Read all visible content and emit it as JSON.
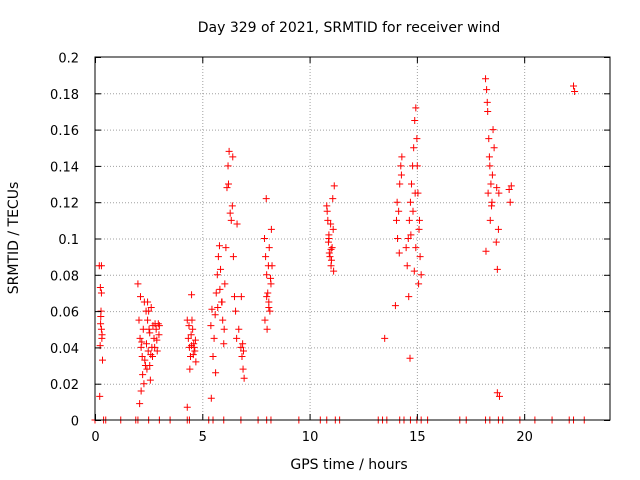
{
  "chart_data": {
    "type": "scatter",
    "title": "Day 329 of 2021, SRMTID for receiver wind",
    "xlabel": "GPS time / hours",
    "ylabel": "SRMTID / TECUs",
    "xlim": [
      0,
      24
    ],
    "ylim": [
      0,
      0.2
    ],
    "xticks": [
      0,
      5,
      10,
      15,
      20
    ],
    "xtick_labels": [
      "0",
      "5",
      "10",
      "15",
      "20"
    ],
    "yticks": [
      0,
      0.02,
      0.04,
      0.06,
      0.08,
      0.1,
      0.12,
      0.14,
      0.16,
      0.18,
      0.2
    ],
    "ytick_labels": [
      "0",
      "0.02",
      "0.04",
      "0.06",
      "0.08",
      "0.1",
      "0.12",
      "0.14",
      "0.16",
      "0.18",
      "0.2"
    ],
    "grid": true,
    "marker": "+",
    "color": "#ff0000",
    "series": [
      {
        "name": "SRMTID",
        "x": [
          0.2,
          0.25,
          0.28,
          0.3,
          0.32,
          0.35,
          0.22,
          0.27,
          0.3,
          0.26,
          0.24,
          0.3,
          0.33,
          2.0,
          2.05,
          2.1,
          2.15,
          2.2,
          2.25,
          2.3,
          2.35,
          2.4,
          2.45,
          2.5,
          2.55,
          2.6,
          2.65,
          2.7,
          2.75,
          2.8,
          2.85,
          2.9,
          2.95,
          3.0,
          2.12,
          2.22,
          2.32,
          2.42,
          2.52,
          2.62,
          2.18,
          2.28,
          2.38,
          2.48,
          2.58,
          2.68,
          2.78,
          2.88,
          2.08,
          2.98,
          2.15,
          2.45,
          2.55,
          4.3,
          4.35,
          4.4,
          4.45,
          4.5,
          4.55,
          4.6,
          4.65,
          4.7,
          4.38,
          4.48,
          4.58,
          4.68,
          4.42,
          4.52,
          4.62,
          4.5,
          4.3,
          5.4,
          5.45,
          5.5,
          5.55,
          5.6,
          5.65,
          5.7,
          5.75,
          5.8,
          5.85,
          5.9,
          5.95,
          6.0,
          6.05,
          6.1,
          6.15,
          6.2,
          6.25,
          6.3,
          6.35,
          6.4,
          6.45,
          6.5,
          6.55,
          6.6,
          6.7,
          6.8,
          6.85,
          6.9,
          6.95,
          5.42,
          5.62,
          5.72,
          5.82,
          5.92,
          6.02,
          6.22,
          6.42,
          6.62,
          6.82,
          6.88,
          6.92,
          7.9,
          7.95,
          8.0,
          8.05,
          8.1,
          8.15,
          8.2,
          8.25,
          7.92,
          8.02,
          8.12,
          8.22,
          7.98,
          8.08,
          8.18,
          8.0,
          8.1,
          10.8,
          10.85,
          10.9,
          10.95,
          11.0,
          11.05,
          11.1,
          11.15,
          10.82,
          10.92,
          11.02,
          11.12,
          10.88,
          10.98,
          11.08,
          10.9,
          11.0,
          13.5,
          14.0,
          14.05,
          14.1,
          14.15,
          14.2,
          14.25,
          14.3,
          14.5,
          14.55,
          14.6,
          14.65,
          14.7,
          14.75,
          14.8,
          14.85,
          14.9,
          14.95,
          15.0,
          15.05,
          15.1,
          15.15,
          15.2,
          14.08,
          14.18,
          14.28,
          14.62,
          14.72,
          14.82,
          14.92,
          15.02,
          15.12,
          14.68,
          14.88,
          15.08,
          14.95,
          18.2,
          18.25,
          18.3,
          18.35,
          18.4,
          18.45,
          18.5,
          18.55,
          18.6,
          18.22,
          18.32,
          18.42,
          18.52,
          18.28,
          18.38,
          18.48,
          18.7,
          18.75,
          18.8,
          18.85,
          18.72,
          18.82,
          19.3,
          19.35,
          19.4,
          18.75,
          22.3,
          22.35
        ],
        "y": [
          0.085,
          0.073,
          0.06,
          0.05,
          0.045,
          0.033,
          0.013,
          0.057,
          0.07,
          0.053,
          0.041,
          0.085,
          0.047,
          0.075,
          0.055,
          0.045,
          0.04,
          0.035,
          0.05,
          0.065,
          0.03,
          0.042,
          0.055,
          0.06,
          0.048,
          0.036,
          0.04,
          0.052,
          0.045,
          0.053,
          0.05,
          0.038,
          0.053,
          0.052,
          0.068,
          0.025,
          0.033,
          0.028,
          0.05,
          0.062,
          0.043,
          0.02,
          0.06,
          0.038,
          0.022,
          0.035,
          0.04,
          0.044,
          0.009,
          0.047,
          0.016,
          0.065,
          0.03,
          0.055,
          0.045,
          0.04,
          0.035,
          0.069,
          0.05,
          0.042,
          0.038,
          0.032,
          0.052,
          0.047,
          0.036,
          0.044,
          0.028,
          0.055,
          0.04,
          0.041,
          0.007,
          0.052,
          0.061,
          0.035,
          0.045,
          0.058,
          0.07,
          0.08,
          0.09,
          0.096,
          0.083,
          0.065,
          0.055,
          0.042,
          0.075,
          0.095,
          0.128,
          0.14,
          0.148,
          0.114,
          0.11,
          0.118,
          0.09,
          0.068,
          0.06,
          0.045,
          0.05,
          0.04,
          0.035,
          0.028,
          0.023,
          0.012,
          0.026,
          0.062,
          0.072,
          0.065,
          0.05,
          0.13,
          0.145,
          0.108,
          0.068,
          0.042,
          0.038,
          0.1,
          0.09,
          0.08,
          0.07,
          0.065,
          0.06,
          0.075,
          0.085,
          0.055,
          0.05,
          0.095,
          0.105,
          0.122,
          0.085,
          0.078,
          0.068,
          0.062,
          0.118,
          0.11,
          0.1,
          0.09,
          0.085,
          0.095,
          0.105,
          0.129,
          0.115,
          0.092,
          0.088,
          0.082,
          0.098,
          0.108,
          0.122,
          0.102,
          0.094,
          0.045,
          0.063,
          0.11,
          0.1,
          0.115,
          0.13,
          0.14,
          0.145,
          0.095,
          0.085,
          0.1,
          0.11,
          0.12,
          0.13,
          0.14,
          0.15,
          0.165,
          0.172,
          0.155,
          0.125,
          0.105,
          0.09,
          0.08,
          0.12,
          0.092,
          0.135,
          0.068,
          0.102,
          0.115,
          0.125,
          0.14,
          0.11,
          0.034,
          0.082,
          0.075,
          0.095,
          0.188,
          0.182,
          0.17,
          0.155,
          0.14,
          0.13,
          0.12,
          0.16,
          0.15,
          0.093,
          0.125,
          0.11,
          0.135,
          0.175,
          0.145,
          0.118,
          0.098,
          0.083,
          0.105,
          0.013,
          0.128,
          0.125,
          0.127,
          0.12,
          0.129,
          0.015,
          0.184,
          0.181
        ]
      },
      {
        "name": "zero-line",
        "x": [
          0.0,
          0.4,
          0.5,
          1.2,
          1.9,
          2.0,
          2.5,
          3.0,
          3.5,
          4.3,
          4.4,
          5.3,
          5.5,
          6.0,
          6.8,
          7.6,
          8.0,
          8.2,
          9.5,
          10.5,
          10.8,
          11.2,
          11.4,
          13.2,
          13.4,
          13.6,
          14.2,
          14.4,
          14.7,
          15.0,
          15.2,
          15.5,
          17.0,
          17.3,
          18.2,
          18.4,
          18.8,
          19.0,
          19.8,
          20.5,
          21.3,
          22.1,
          22.3,
          22.8
        ],
        "y": [
          0,
          0,
          0,
          0,
          0,
          0,
          0,
          0,
          0,
          0,
          0,
          0,
          0,
          0,
          0,
          0,
          0,
          0,
          0,
          0,
          0,
          0,
          0,
          0,
          0,
          0,
          0,
          0,
          0,
          0,
          0,
          0,
          0,
          0,
          0,
          0,
          0,
          0,
          0,
          0,
          0,
          0,
          0,
          0
        ]
      }
    ]
  }
}
